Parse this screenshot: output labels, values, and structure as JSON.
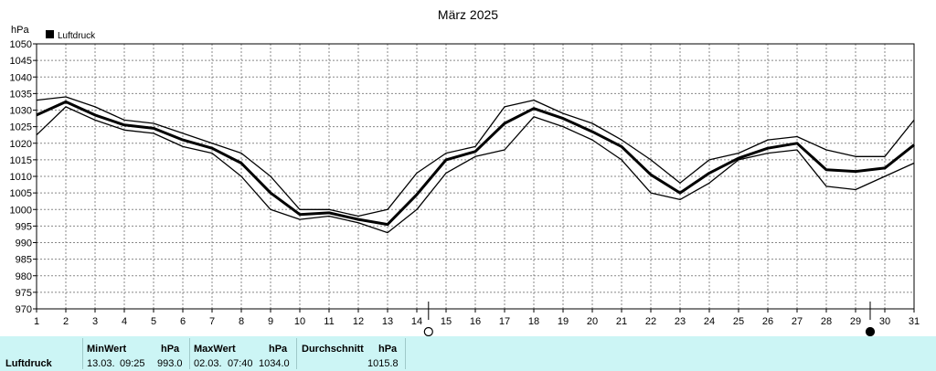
{
  "chart_data": {
    "type": "line",
    "title": "März 2025",
    "ylabel": "hPa",
    "legend": "Luftdruck",
    "legend_placement": "top-left",
    "ylim": [
      970,
      1050
    ],
    "yticks": [
      970,
      975,
      980,
      985,
      990,
      995,
      1000,
      1005,
      1010,
      1015,
      1020,
      1025,
      1030,
      1035,
      1040,
      1045,
      1050
    ],
    "x": [
      1,
      2,
      3,
      4,
      5,
      6,
      7,
      8,
      9,
      10,
      11,
      12,
      13,
      14,
      15,
      16,
      17,
      18,
      19,
      20,
      21,
      22,
      23,
      24,
      25,
      26,
      27,
      28,
      29,
      30,
      31
    ],
    "xlim": [
      1,
      31
    ],
    "grid": true,
    "series": [
      {
        "name": "Luftdruck",
        "role": "mean",
        "values": [
          1028.5,
          1032.5,
          1028.5,
          1025.5,
          1024.5,
          1021,
          1018.5,
          1014,
          1005,
          998.5,
          999,
          997,
          995.5,
          1004.5,
          1015,
          1017.5,
          1026,
          1030.5,
          1027.5,
          1023.5,
          1019,
          1010.5,
          1005,
          1011,
          1015.5,
          1018.5,
          1020,
          1012,
          1011.5,
          1012.5,
          1019.5
        ]
      },
      {
        "role": "max",
        "values": [
          1033,
          1034,
          1031,
          1027,
          1026,
          1023,
          1020,
          1017,
          1010,
          1000,
          1000,
          998,
          1000,
          1011,
          1017,
          1019,
          1031,
          1033,
          1029,
          1026,
          1021,
          1015,
          1008,
          1015,
          1017,
          1021,
          1022,
          1018,
          1016,
          1016,
          1027
        ]
      },
      {
        "role": "min",
        "values": [
          1022.5,
          1031,
          1027,
          1024,
          1023,
          1019,
          1017,
          1010,
          1000,
          997,
          998,
          996,
          993,
          1000,
          1011,
          1016,
          1018,
          1028,
          1025,
          1021,
          1015,
          1005,
          1003,
          1008,
          1015,
          1017,
          1018,
          1007,
          1006,
          1010,
          1014
        ]
      }
    ],
    "moon_phases": [
      {
        "x": 14.4,
        "phase": "full-moon"
      },
      {
        "x": 29.5,
        "phase": "new-moon"
      }
    ],
    "colors": {
      "line": "#000000",
      "grid": "#888888",
      "stats_bg": "#ccf5f5"
    }
  },
  "stats": {
    "label": "Luftdruck",
    "min": {
      "header": "MinWert",
      "unit": "hPa",
      "date": "13.03.",
      "time": "09:25",
      "value": "993.0"
    },
    "max": {
      "header": "MaxWert",
      "unit": "hPa",
      "date": "02.03.",
      "time": "07:40",
      "value": "1034.0"
    },
    "avg": {
      "header": "Durchschnitt",
      "unit": "hPa",
      "value": "1015.8"
    }
  }
}
